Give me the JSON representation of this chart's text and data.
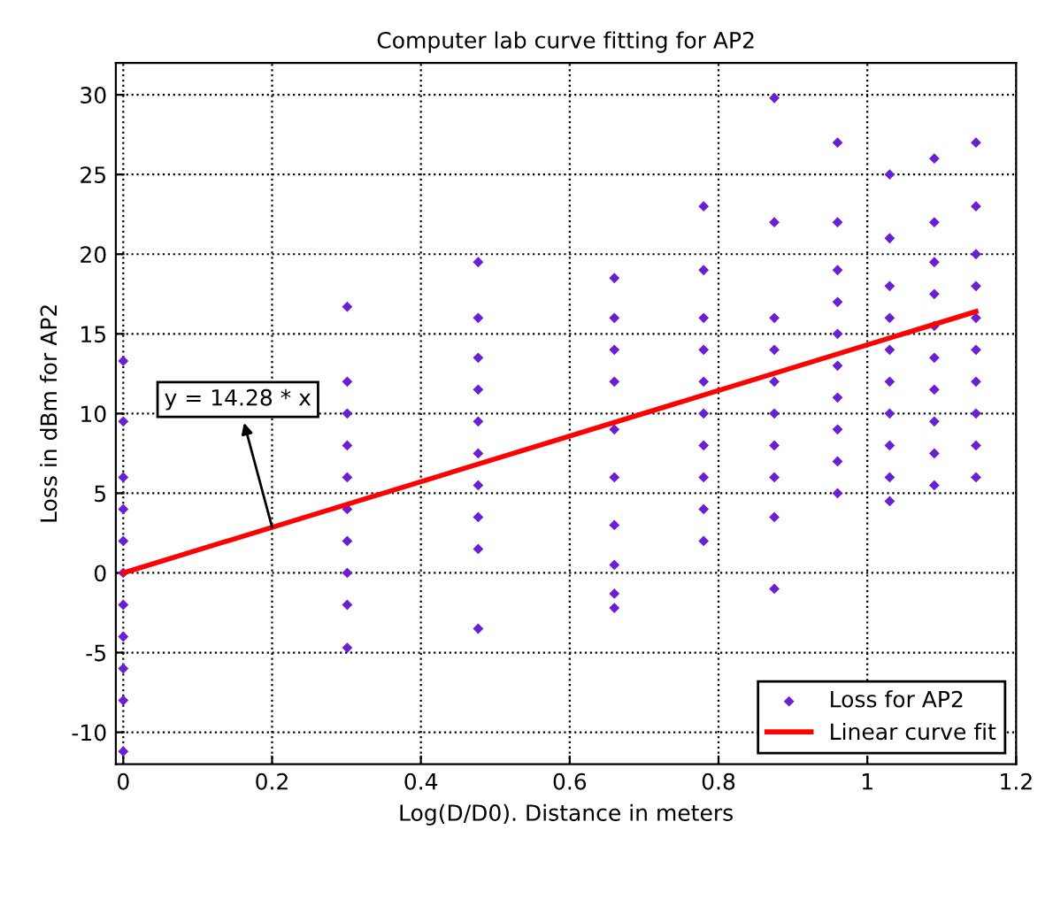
{
  "chart_data": {
    "type": "scatter",
    "title": "Computer lab curve fitting for AP2",
    "xlabel": "Log(D/D0). Distance in meters",
    "ylabel": "Loss in dBm for AP2",
    "xlim": [
      -0.01,
      1.2
    ],
    "ylim": [
      -12,
      32
    ],
    "xticks": [
      0,
      0.2,
      0.4,
      0.6,
      0.8,
      1,
      1.2
    ],
    "yticks": [
      -10,
      -5,
      0,
      5,
      10,
      15,
      20,
      25,
      30
    ],
    "grid": true,
    "legend": "bottom right",
    "annotations": [
      {
        "text": "y = 14.28 * x",
        "x": 0.2,
        "y": 2.86
      }
    ],
    "series": [
      {
        "name": "Loss for AP2",
        "marker": "diamond",
        "color": "#6a1fd0",
        "x": [
          0,
          0,
          0,
          0,
          0,
          0,
          0,
          0,
          0,
          0,
          0,
          0.301,
          0.301,
          0.301,
          0.301,
          0.301,
          0.301,
          0.301,
          0.301,
          0.301,
          0.301,
          0.477,
          0.477,
          0.477,
          0.477,
          0.477,
          0.477,
          0.477,
          0.477,
          0.477,
          0.477,
          0.66,
          0.66,
          0.66,
          0.66,
          0.66,
          0.66,
          0.66,
          0.66,
          0.66,
          0.66,
          0.78,
          0.78,
          0.78,
          0.78,
          0.78,
          0.78,
          0.78,
          0.78,
          0.78,
          0.78,
          0.875,
          0.875,
          0.875,
          0.875,
          0.875,
          0.875,
          0.875,
          0.875,
          0.875,
          0.875,
          0.96,
          0.96,
          0.96,
          0.96,
          0.96,
          0.96,
          0.96,
          0.96,
          0.96,
          0.96,
          1.03,
          1.03,
          1.03,
          1.03,
          1.03,
          1.03,
          1.03,
          1.03,
          1.03,
          1.03,
          1.09,
          1.09,
          1.09,
          1.09,
          1.09,
          1.09,
          1.09,
          1.09,
          1.09,
          1.09,
          1.146,
          1.146,
          1.146,
          1.146,
          1.146,
          1.146,
          1.146,
          1.146,
          1.146,
          1.146
        ],
        "values": [
          -11.2,
          -8,
          -6,
          -4,
          -2,
          0,
          2,
          4,
          6,
          9.5,
          13.3,
          -4.7,
          -2,
          0,
          2,
          4,
          6,
          8,
          10,
          12,
          16.7,
          -3.5,
          1.5,
          3.5,
          5.5,
          7.5,
          9.5,
          11.5,
          13.5,
          16,
          19.5,
          -2.2,
          -1.3,
          0.5,
          3,
          6,
          9,
          12,
          14,
          16,
          18.5,
          2,
          4,
          6,
          8,
          10,
          12,
          14,
          16,
          19,
          23,
          -1,
          3.5,
          6,
          8,
          10,
          12,
          14,
          16,
          22,
          29.8,
          5,
          7,
          9,
          11,
          13,
          15,
          17,
          19,
          22,
          27,
          4.5,
          6,
          8,
          10,
          12,
          14,
          16,
          18,
          21,
          25,
          5.5,
          7.5,
          9.5,
          11.5,
          13.5,
          15.5,
          17.5,
          19.5,
          22,
          26,
          6,
          8,
          10,
          12,
          14,
          16,
          18,
          20,
          23,
          27
        ]
      },
      {
        "name": "Linear curve fit",
        "type": "line",
        "marker": "none",
        "color": "#ff0000",
        "x": [
          0,
          1.146
        ],
        "values": [
          0,
          16.4
        ]
      }
    ]
  }
}
